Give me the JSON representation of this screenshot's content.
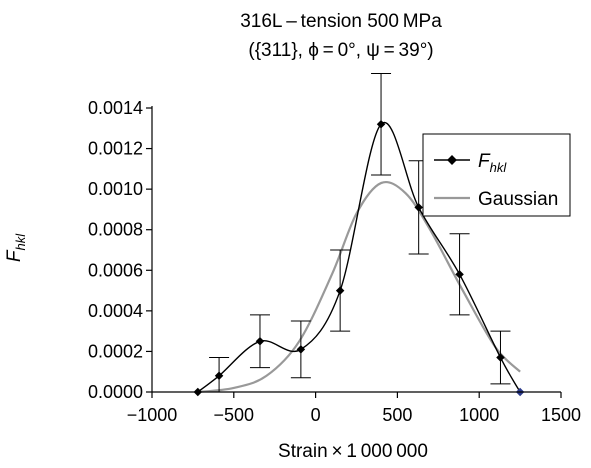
{
  "chart_data": {
    "type": "line",
    "title": "316L – tension 500 MPa",
    "subtitle": "({311}, ϕ = 0°, ψ = 39°)",
    "xlabel": "Strain × 1 000 000",
    "ylabel": "F",
    "ylabel_sub": "hkl",
    "xlim": [
      -1000,
      1500
    ],
    "ylim": [
      0,
      0.0014
    ],
    "xticks": [
      -1000,
      -500,
      0,
      500,
      1000,
      1500
    ],
    "xtick_labels": [
      "−1000",
      "−500",
      "0",
      "500",
      "1000",
      "1500"
    ],
    "yticks": [
      0,
      0.0002,
      0.0004,
      0.0006,
      0.0008,
      0.001,
      0.0012,
      0.0014
    ],
    "ytick_labels": [
      "0.0000",
      "0.0002",
      "0.0004",
      "0.0006",
      "0.0008",
      "0.0010",
      "0.0012",
      "0.0014"
    ],
    "grid": false,
    "legend_position": "right",
    "series": [
      {
        "name": "F",
        "name_sub": "hkl",
        "color": "#000000",
        "marker": "diamond",
        "smooth": true,
        "x": [
          -720,
          -590,
          -340,
          -90,
          150,
          400,
          630,
          880,
          1130,
          1250
        ],
        "y": [
          0.0,
          8e-05,
          0.00025,
          0.00021,
          0.0005,
          0.00132,
          0.00091,
          0.00058,
          0.00017,
          0.0
        ],
        "error": [
          0.0,
          9e-05,
          0.00013,
          0.00014,
          0.0002,
          0.00025,
          0.00023,
          0.0002,
          0.00013,
          0.0
        ]
      },
      {
        "name": "Gaussian",
        "color": "#999999",
        "marker": "none",
        "smooth": true,
        "x": [
          -720,
          -500,
          -300,
          -100,
          100,
          250,
          400,
          550,
          700,
          900,
          1100,
          1250
        ],
        "y": [
          0.0,
          2e-05,
          8e-05,
          0.00025,
          0.00058,
          0.00088,
          0.00103,
          0.00098,
          0.0008,
          0.0005,
          0.00022,
          0.0001
        ]
      }
    ]
  }
}
